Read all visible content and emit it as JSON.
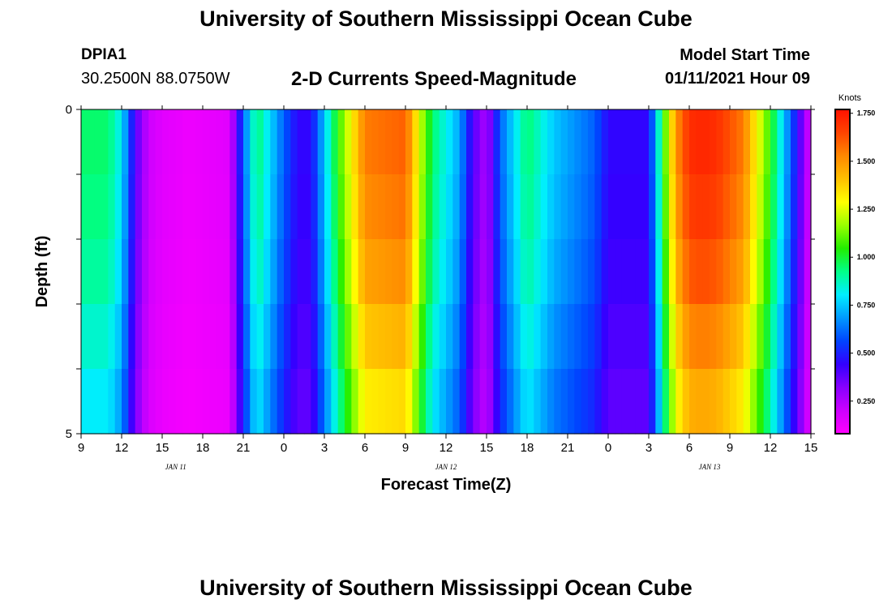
{
  "header": {
    "title": "University of Southern Mississippi Ocean Cube",
    "station": "DPIA1",
    "coords": "30.2500N 88.0750W",
    "chart_title": "2-D Currents Speed-Magnitude",
    "model_label": "Model Start Time",
    "model_time": "01/11/2021 Hour 09"
  },
  "footer": {
    "title": "University of Southern Mississippi Ocean Cube"
  },
  "colors": {
    "gradient": [
      "#ff00ff",
      "#cc00ff",
      "#8800ff",
      "#3300ff",
      "#0044ff",
      "#0099ff",
      "#00eeff",
      "#00ff88",
      "#22ee00",
      "#99ff00",
      "#ffff00",
      "#ffc000",
      "#ff8800",
      "#ff4400",
      "#ff1100"
    ]
  },
  "chart_data": {
    "type": "heatmap",
    "title": "2-D Currents Speed-Magnitude",
    "xlabel": "Forecast Time(Z)",
    "ylabel": "Depth (ft)",
    "x_ticks": [
      "9",
      "12",
      "15",
      "18",
      "21",
      "0",
      "3",
      "6",
      "9",
      "12",
      "15",
      "18",
      "21",
      "0",
      "3",
      "6",
      "9",
      "12",
      "15"
    ],
    "x_tick_hours": [
      0,
      3,
      6,
      9,
      12,
      15,
      18,
      21,
      24,
      27,
      30,
      33,
      36,
      39,
      42,
      45,
      48,
      51,
      54
    ],
    "date_labels": [
      {
        "label": "JAN 11",
        "hour": 7
      },
      {
        "label": "JAN 12",
        "hour": 27
      },
      {
        "label": "JAN 13",
        "hour": 46.5
      }
    ],
    "y_ticks": [
      "0",
      "5"
    ],
    "y_tick_depths": [
      0,
      5
    ],
    "ylim": [
      0,
      5
    ],
    "xlim": [
      0,
      54
    ],
    "layers": 5,
    "colorbar": {
      "label": "Knots",
      "ticks": [
        "1.750",
        "1.500",
        "1.250",
        "1.000",
        "0.750",
        "0.500",
        "0.250"
      ],
      "tick_values": [
        1.75,
        1.5,
        1.25,
        1.0,
        0.75,
        0.5,
        0.25
      ],
      "min": 0.08,
      "max": 1.77
    },
    "speed_profile_hours": [
      0,
      2,
      3,
      4,
      5,
      6,
      8,
      11,
      12,
      13,
      15,
      16,
      17,
      19,
      21,
      24,
      24.5,
      25,
      26,
      28,
      29,
      30,
      31,
      33,
      35,
      38,
      39,
      41,
      42,
      43,
      44,
      45,
      46,
      47,
      49,
      50,
      51,
      52,
      53,
      54
    ],
    "speed_profile_knots": [
      0.95,
      0.95,
      0.8,
      0.4,
      0.2,
      0.15,
      0.12,
      0.15,
      0.6,
      0.95,
      0.6,
      0.45,
      0.45,
      1.05,
      1.55,
      1.6,
      1.45,
      1.25,
      0.95,
      0.7,
      0.4,
      0.25,
      0.6,
      0.95,
      0.75,
      0.6,
      0.45,
      0.45,
      0.45,
      1.0,
      1.5,
      1.7,
      1.72,
      1.7,
      1.55,
      1.3,
      1.05,
      0.75,
      0.45,
      0.15
    ],
    "layer_factors": [
      1.0,
      0.98,
      0.95,
      0.9,
      0.85
    ]
  }
}
